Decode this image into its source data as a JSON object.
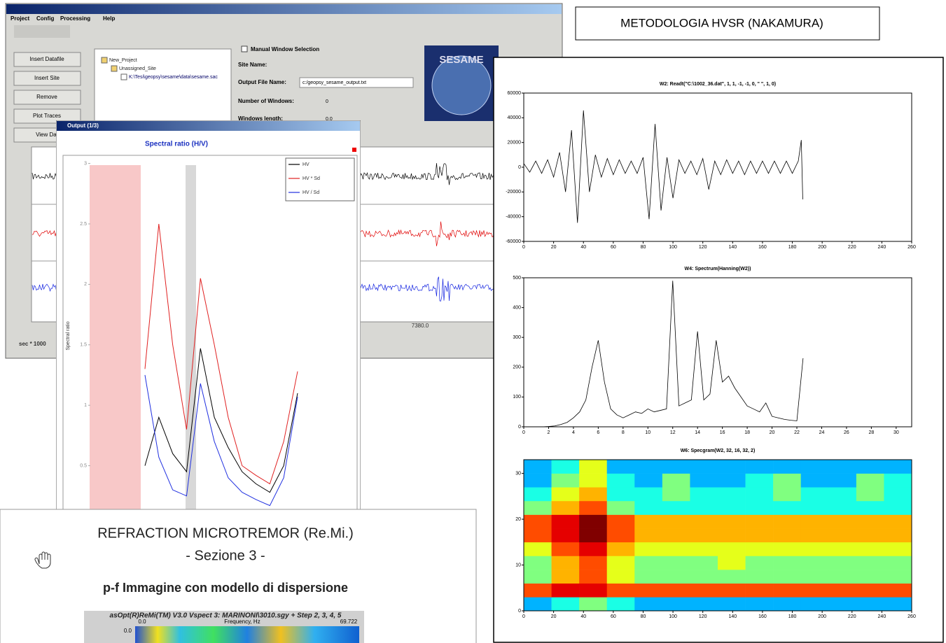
{
  "title_box": {
    "text": "METODOLOGIA  HVSR (NAKAMURA)"
  },
  "geopsy_window": {
    "menu": [
      "Project",
      "Config",
      "Processing",
      "Help"
    ],
    "buttons": [
      "Insert Datafile",
      "Insert Site",
      "Remove",
      "Plot Traces",
      "View Dat"
    ],
    "tree": [
      "New_Project",
      "Unassigned_Site",
      "K:\\Tesi\\geopsy\\sesame\\data\\sesame.sac"
    ],
    "checkbox": "Manual Window Selection",
    "fields": [
      {
        "label": "Site Name:"
      },
      {
        "label": "Output File Name:",
        "value": "c:/geopsy_sesame_output.txt"
      },
      {
        "label": "Number of Windows:",
        "value": "0"
      },
      {
        "label": "Windows length:",
        "value": "0.0"
      }
    ],
    "logo": "SESAME",
    "time_label": "7380.0",
    "x_axis_label": "sec * 1000"
  },
  "output_window": {
    "title": "Output (1/3)"
  },
  "chart_data": [
    {
      "type": "line",
      "title": "Spectral ratio (H/V)",
      "y_label": "Spectral ratio",
      "ylim": [
        0,
        3
      ],
      "yticks": [
        0.5,
        1,
        1.5,
        2,
        2.5,
        3
      ],
      "series": [
        {
          "name": "HV",
          "color": "#000000",
          "values": [
            0.5,
            0.9,
            0.6,
            0.45,
            1.47,
            0.9,
            0.65,
            0.45,
            0.35,
            0.28,
            0.5,
            1.1
          ]
        },
        {
          "name": "HV * Sd",
          "color": "#e02020",
          "values": [
            1.3,
            2.5,
            1.5,
            0.8,
            2.05,
            1.5,
            0.9,
            0.5,
            0.42,
            0.35,
            0.7,
            1.28
          ]
        },
        {
          "name": "HV / Sd",
          "color": "#2030e0",
          "values": [
            1.25,
            0.57,
            0.3,
            0.25,
            1.18,
            0.7,
            0.4,
            0.28,
            0.22,
            0.17,
            0.4,
            1.07
          ]
        }
      ]
    },
    {
      "type": "line",
      "title": "W2: Readt(\"C:\\1002_36.dat\", 1, 1, -1, -1, 0, \" \", 1, 0)",
      "color": "#000000",
      "xlim": [
        0,
        260
      ],
      "xticks": [
        0,
        20,
        40,
        60,
        80,
        100,
        120,
        140,
        160,
        180,
        200,
        220,
        240,
        260
      ],
      "ylim": [
        -60000,
        60000
      ],
      "yticks": [
        60000,
        40000,
        20000,
        0,
        -20000,
        -40000,
        -60000
      ],
      "x": [
        0,
        4,
        8,
        12,
        16,
        20,
        24,
        28,
        32,
        36,
        40,
        44,
        48,
        52,
        56,
        60,
        64,
        68,
        72,
        76,
        80,
        84,
        88,
        92,
        96,
        100,
        104,
        108,
        112,
        116,
        120,
        124,
        128,
        132,
        136,
        140,
        144,
        148,
        152,
        156,
        160,
        164,
        168,
        172,
        176,
        180,
        184,
        186,
        187
      ],
      "values": [
        3000,
        -4000,
        5000,
        -5000,
        6000,
        -8000,
        12000,
        -20000,
        30000,
        -45000,
        46000,
        -20000,
        10000,
        -8000,
        7000,
        -6000,
        6000,
        -5000,
        5000,
        -5000,
        8000,
        -42000,
        35000,
        -35000,
        8000,
        -25000,
        6000,
        -5000,
        5000,
        -6000,
        7000,
        -18000,
        5000,
        -6000,
        6000,
        -5000,
        5000,
        -6000,
        5000,
        -5000,
        5000,
        -5000,
        5000,
        -5000,
        5000,
        -5000,
        5000,
        22000,
        -26000
      ]
    },
    {
      "type": "line",
      "title": "W4: Spectrum(Hanning(W2))",
      "color": "#000000",
      "xlim": [
        0,
        31.25
      ],
      "xticks": [
        0,
        2,
        4,
        6,
        8,
        10,
        12,
        14,
        16,
        18,
        20,
        22,
        24,
        26,
        28,
        30
      ],
      "ylim": [
        0,
        500
      ],
      "yticks": [
        0,
        100,
        200,
        300,
        400,
        500
      ],
      "x": [
        0,
        0.5,
        1,
        1.5,
        2,
        2.5,
        3,
        3.5,
        4,
        4.5,
        5,
        5.5,
        6,
        6.5,
        7,
        7.5,
        8,
        8.5,
        9,
        9.5,
        10,
        10.5,
        11,
        11.5,
        12,
        12.5,
        13,
        13.5,
        14,
        14.5,
        15,
        15.5,
        16,
        16.5,
        17,
        17.5,
        18,
        18.5,
        19,
        19.5,
        20,
        20.5,
        21,
        21.5,
        22,
        22.5
      ],
      "values": [
        0,
        0,
        0,
        0,
        1,
        3,
        8,
        15,
        30,
        50,
        90,
        200,
        290,
        150,
        60,
        40,
        30,
        40,
        50,
        45,
        60,
        50,
        55,
        60,
        490,
        70,
        80,
        90,
        320,
        90,
        110,
        290,
        150,
        170,
        130,
        100,
        70,
        60,
        50,
        80,
        35,
        30,
        25,
        22,
        20,
        230
      ]
    },
    {
      "type": "heatmap",
      "title": "W6: Specgram(W2, 32, 16, 32, 2)",
      "xlim": [
        0,
        260
      ],
      "xticks": [
        0,
        20,
        40,
        60,
        80,
        100,
        120,
        140,
        160,
        180,
        200,
        220,
        240,
        260
      ],
      "ylim": [
        0,
        33
      ],
      "yticks": [
        0,
        10,
        20,
        30
      ],
      "zlim": [
        0,
        10
      ],
      "z": [
        [
          3,
          4,
          5,
          4,
          3,
          3,
          3,
          3,
          3,
          3,
          3,
          3,
          3,
          3
        ],
        [
          8,
          9,
          9,
          8,
          8,
          8,
          8,
          8,
          8,
          8,
          8,
          8,
          8,
          8
        ],
        [
          5,
          7,
          8,
          6,
          5,
          5,
          5,
          5,
          5,
          5,
          5,
          5,
          5,
          5
        ],
        [
          5,
          7,
          8,
          6,
          5,
          5,
          5,
          6,
          5,
          5,
          5,
          5,
          5,
          5
        ],
        [
          6,
          8,
          9,
          7,
          6,
          6,
          6,
          6,
          6,
          6,
          6,
          6,
          6,
          6
        ],
        [
          8,
          9,
          10,
          8,
          7,
          7,
          7,
          7,
          7,
          7,
          7,
          7,
          7,
          7
        ],
        [
          8,
          9,
          10,
          8,
          7,
          7,
          7,
          7,
          7,
          7,
          7,
          7,
          7,
          7
        ],
        [
          5,
          7,
          8,
          5,
          4,
          4,
          4,
          4,
          4,
          4,
          4,
          4,
          4,
          4
        ],
        [
          4,
          6,
          7,
          4,
          4,
          5,
          4,
          4,
          4,
          5,
          4,
          4,
          5,
          4
        ],
        [
          3,
          5,
          6,
          4,
          3,
          5,
          3,
          3,
          4,
          5,
          3,
          3,
          5,
          4
        ],
        [
          3,
          4,
          6,
          3,
          3,
          3,
          3,
          3,
          3,
          3,
          3,
          3,
          3,
          3
        ]
      ]
    }
  ],
  "document": {
    "title": "REFRACTION MICROTREMOR (Re.Mi.)",
    "subtitle": "- Sezione 3 -",
    "heading": "p-f Immagine con modello di dispersione",
    "image_caption": "asOpt(R)ReMi(TM) V3.0 Vspect 3: MARINONI\\3010.sgy + Step 2, 3, 4, 5",
    "x_start": "0.0",
    "x_label": "Frequency, Hz",
    "x_end": "69.722",
    "y_start": "0.0"
  }
}
